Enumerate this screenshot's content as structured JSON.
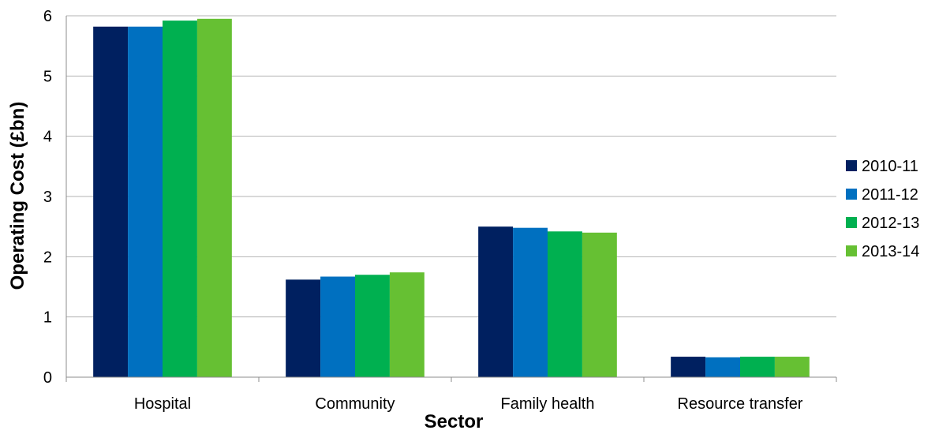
{
  "chart_data": {
    "type": "bar",
    "title": "",
    "xlabel": "Sector",
    "ylabel": "Operating Cost (£bn)",
    "categories": [
      "Hospital",
      "Community",
      "Family health",
      "Resource transfer"
    ],
    "ylim": [
      0,
      6
    ],
    "yticks": [
      "0",
      "1",
      "2",
      "3",
      "4",
      "5",
      "6"
    ],
    "grid": true,
    "legend_position": "right",
    "series": [
      {
        "name": "2010-11",
        "color": "#002060",
        "values": [
          5.82,
          1.62,
          2.5,
          0.34
        ]
      },
      {
        "name": "2011-12",
        "color": "#0070C0",
        "values": [
          5.82,
          1.67,
          2.48,
          0.33
        ]
      },
      {
        "name": "2012-13",
        "color": "#00B050",
        "values": [
          5.92,
          1.7,
          2.42,
          0.34
        ]
      },
      {
        "name": "2013-14",
        "color": "#66C033",
        "values": [
          5.95,
          1.74,
          2.4,
          0.34
        ]
      }
    ]
  }
}
